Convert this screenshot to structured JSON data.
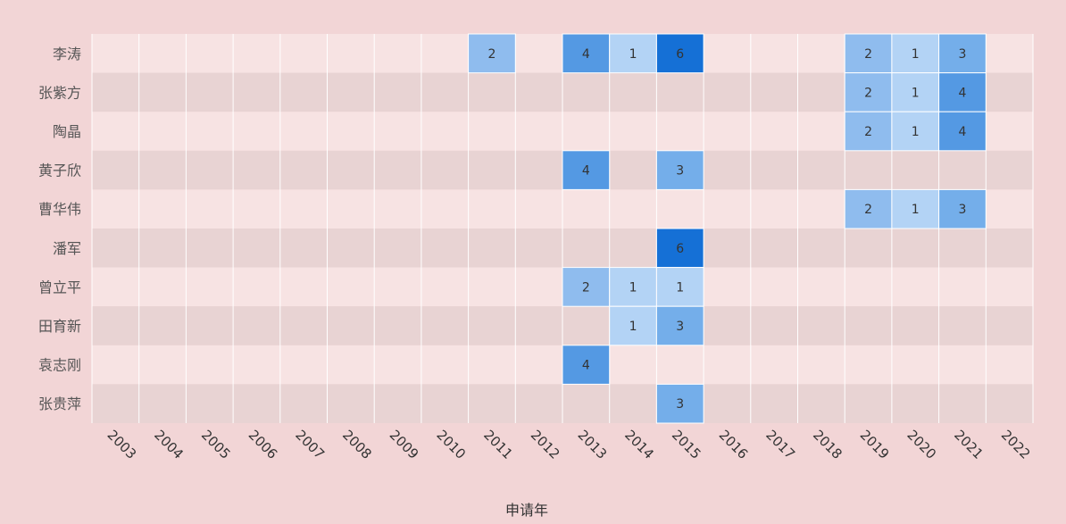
{
  "chart_data": {
    "type": "heatmap",
    "title": "",
    "xlabel": "申请年",
    "ylabel": "",
    "x_categories": [
      "2003",
      "2004",
      "2005",
      "2006",
      "2007",
      "2008",
      "2009",
      "2010",
      "2011",
      "2012",
      "2013",
      "2014",
      "2015",
      "2016",
      "2017",
      "2018",
      "2019",
      "2020",
      "2021",
      "2022"
    ],
    "y_categories": [
      "李涛",
      "张紫方",
      "陶晶",
      "黄子欣",
      "曹华伟",
      "潘军",
      "曾立平",
      "田育新",
      "袁志刚",
      "张贵萍"
    ],
    "cells": [
      {
        "y": "李涛",
        "x": "2011",
        "value": 2
      },
      {
        "y": "李涛",
        "x": "2013",
        "value": 4
      },
      {
        "y": "李涛",
        "x": "2014",
        "value": 1
      },
      {
        "y": "李涛",
        "x": "2015",
        "value": 6
      },
      {
        "y": "李涛",
        "x": "2019",
        "value": 2
      },
      {
        "y": "李涛",
        "x": "2020",
        "value": 1
      },
      {
        "y": "李涛",
        "x": "2021",
        "value": 3
      },
      {
        "y": "张紫方",
        "x": "2019",
        "value": 2
      },
      {
        "y": "张紫方",
        "x": "2020",
        "value": 1
      },
      {
        "y": "张紫方",
        "x": "2021",
        "value": 4
      },
      {
        "y": "陶晶",
        "x": "2019",
        "value": 2
      },
      {
        "y": "陶晶",
        "x": "2020",
        "value": 1
      },
      {
        "y": "陶晶",
        "x": "2021",
        "value": 4
      },
      {
        "y": "黄子欣",
        "x": "2013",
        "value": 4
      },
      {
        "y": "黄子欣",
        "x": "2015",
        "value": 3
      },
      {
        "y": "曹华伟",
        "x": "2019",
        "value": 2
      },
      {
        "y": "曹华伟",
        "x": "2020",
        "value": 1
      },
      {
        "y": "曹华伟",
        "x": "2021",
        "value": 3
      },
      {
        "y": "潘军",
        "x": "2015",
        "value": 6
      },
      {
        "y": "曾立平",
        "x": "2013",
        "value": 2
      },
      {
        "y": "曾立平",
        "x": "2014",
        "value": 1
      },
      {
        "y": "曾立平",
        "x": "2015",
        "value": 1
      },
      {
        "y": "田育新",
        "x": "2014",
        "value": 1
      },
      {
        "y": "田育新",
        "x": "2015",
        "value": 3
      },
      {
        "y": "袁志刚",
        "x": "2013",
        "value": 4
      },
      {
        "y": "张贵萍",
        "x": "2015",
        "value": 3
      }
    ],
    "value_colors": {
      "1": "#b3d3f5",
      "2": "#8fbcee",
      "3": "#74aeea",
      "4": "#5499e3",
      "6": "#1570d6"
    },
    "band_colors": [
      "#f7e3e3",
      "#e8d3d3"
    ],
    "background_color": "#f2d5d6",
    "grid": true,
    "legend": "none"
  }
}
